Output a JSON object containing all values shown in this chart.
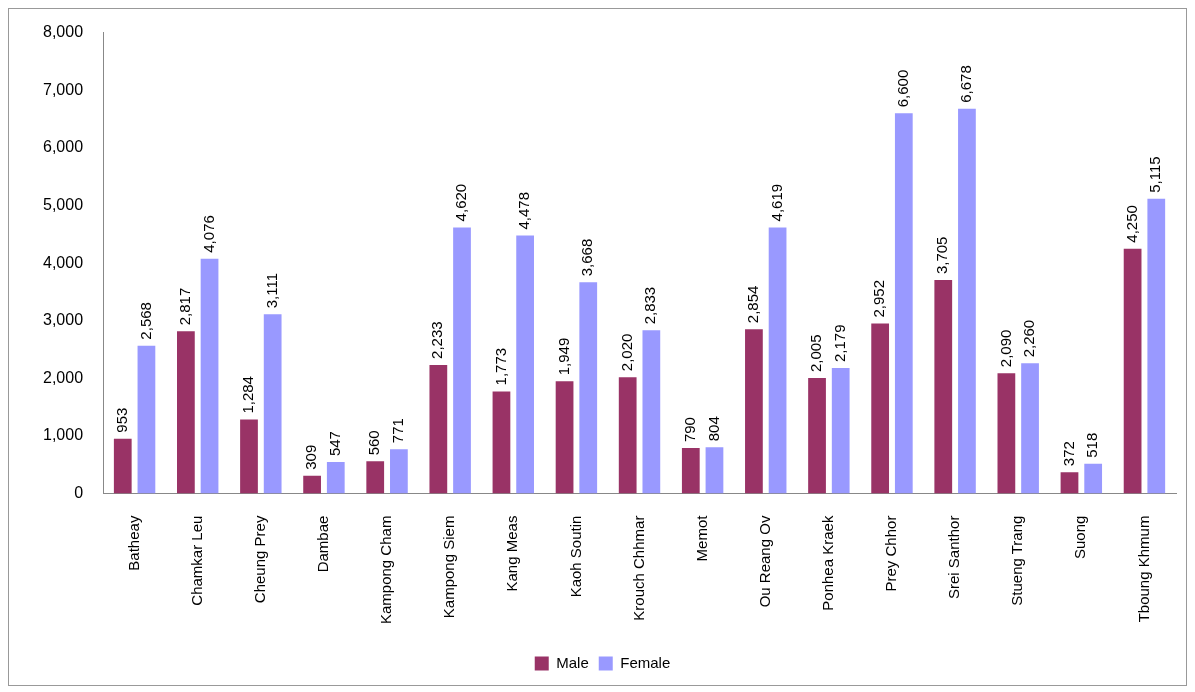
{
  "chart_data": {
    "type": "bar",
    "categories": [
      "Batheay",
      "Chamkar Leu",
      "Cheung Prey",
      "Dambae",
      "Kampong Cham",
      "Kampong Siem",
      "Kang Meas",
      "Kaoh Soutin",
      "Krouch Chhmar",
      "Memot",
      "Ou Reang Ov",
      "Ponhea Kraek",
      "Prey Chhor",
      "Srei Santhor",
      "Stueng Trang",
      "Suong",
      "Tboung Khmum"
    ],
    "series": [
      {
        "name": "Male",
        "color": "#993366",
        "values": [
          953,
          2817,
          1284,
          309,
          560,
          2233,
          1773,
          1949,
          2020,
          790,
          2854,
          2005,
          2952,
          3705,
          2090,
          372,
          4250
        ],
        "value_labels": [
          "953",
          "2,817",
          "1,284",
          "309",
          "560",
          "2,233",
          "1,773",
          "1,949",
          "2,020",
          "790",
          "2,854",
          "2,005",
          "2,952",
          "3,705",
          "2,090",
          "372",
          "4,250"
        ]
      },
      {
        "name": "Female",
        "color": "#9999ff",
        "values": [
          2568,
          4076,
          3111,
          547,
          771,
          4620,
          4478,
          3668,
          2833,
          804,
          4619,
          2179,
          6600,
          6678,
          2260,
          518,
          5115
        ],
        "value_labels": [
          "2,568",
          "4,076",
          "3,111",
          "547",
          "771",
          "4,620",
          "4,478",
          "3,668",
          "2,833",
          "804",
          "4,619",
          "2,179",
          "6,600",
          "6,678",
          "2,260",
          "518",
          "5,115"
        ]
      }
    ],
    "ylim": [
      0,
      8000
    ],
    "yticks": [
      {
        "value": 0,
        "label": "0"
      },
      {
        "value": 1000,
        "label": "1,000"
      },
      {
        "value": 2000,
        "label": "2,000"
      },
      {
        "value": 3000,
        "label": "3,000"
      },
      {
        "value": 4000,
        "label": "4,000"
      },
      {
        "value": 5000,
        "label": "5,000"
      },
      {
        "value": 6000,
        "label": "6,000"
      },
      {
        "value": 7000,
        "label": "7,000"
      },
      {
        "value": 8000,
        "label": "8,000"
      }
    ],
    "grid": false,
    "legend": "bottom"
  }
}
